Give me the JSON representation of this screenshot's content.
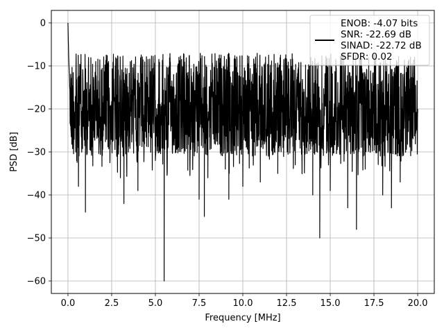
{
  "chart_data": {
    "type": "line",
    "xlabel": "Frequency [MHz]",
    "ylabel": "PSD [dB]",
    "xlim": [
      -0.95,
      20.95
    ],
    "ylim": [
      -62.9,
      2.9
    ],
    "xticks": [
      0.0,
      2.5,
      5.0,
      7.5,
      10.0,
      12.5,
      15.0,
      17.5,
      20.0
    ],
    "xtick_labels": [
      "0.0",
      "2.5",
      "5.0",
      "7.5",
      "10.0",
      "12.5",
      "15.0",
      "17.5",
      "20.0"
    ],
    "yticks": [
      0,
      -10,
      -20,
      -30,
      -40,
      -50,
      -60
    ],
    "ytick_labels": [
      "0",
      "−10",
      "−20",
      "−30",
      "−40",
      "−50",
      "−60"
    ],
    "grid": true,
    "legend_position": "top-right",
    "series_color": "#000000",
    "legend_lines": [
      "ENOB: -4.07 bits",
      "SNR: -22.69 dB",
      "SINAD: -22.72 dB",
      "SFDR: 0.02"
    ],
    "series": [
      {
        "x": [
          0.0,
          0.02,
          0.05,
          0.08,
          0.1,
          0.2,
          0.3,
          0.5,
          0.6,
          1.0,
          1.5,
          2.0,
          2.5,
          3.0,
          3.2,
          4.0,
          5.0,
          5.5,
          6.0,
          7.0,
          7.5,
          7.8,
          8.0,
          9.0,
          9.2,
          10.0,
          11.0,
          12.0,
          13.0,
          14.0,
          14.4,
          15.0,
          16.0,
          16.5,
          17.0,
          18.0,
          18.5,
          19.0,
          20.0
        ],
        "y": [
          0.0,
          -4.0,
          -9.0,
          -12.0,
          -15.0,
          -20.0,
          -26.0,
          -32.0,
          -38.0,
          -44.0,
          -30.0,
          -25.0,
          -18.0,
          -36.0,
          -42.0,
          -39.0,
          -32.0,
          -60.0,
          -28.0,
          -30.0,
          -41.0,
          -45.0,
          -36.0,
          -34.0,
          -41.0,
          -38.0,
          -37.0,
          -35.0,
          -33.0,
          -40.0,
          -50.0,
          -39.0,
          -43.0,
          -48.0,
          -34.0,
          -40.0,
          -43.0,
          -37.0,
          -20.0
        ]
      }
    ]
  }
}
